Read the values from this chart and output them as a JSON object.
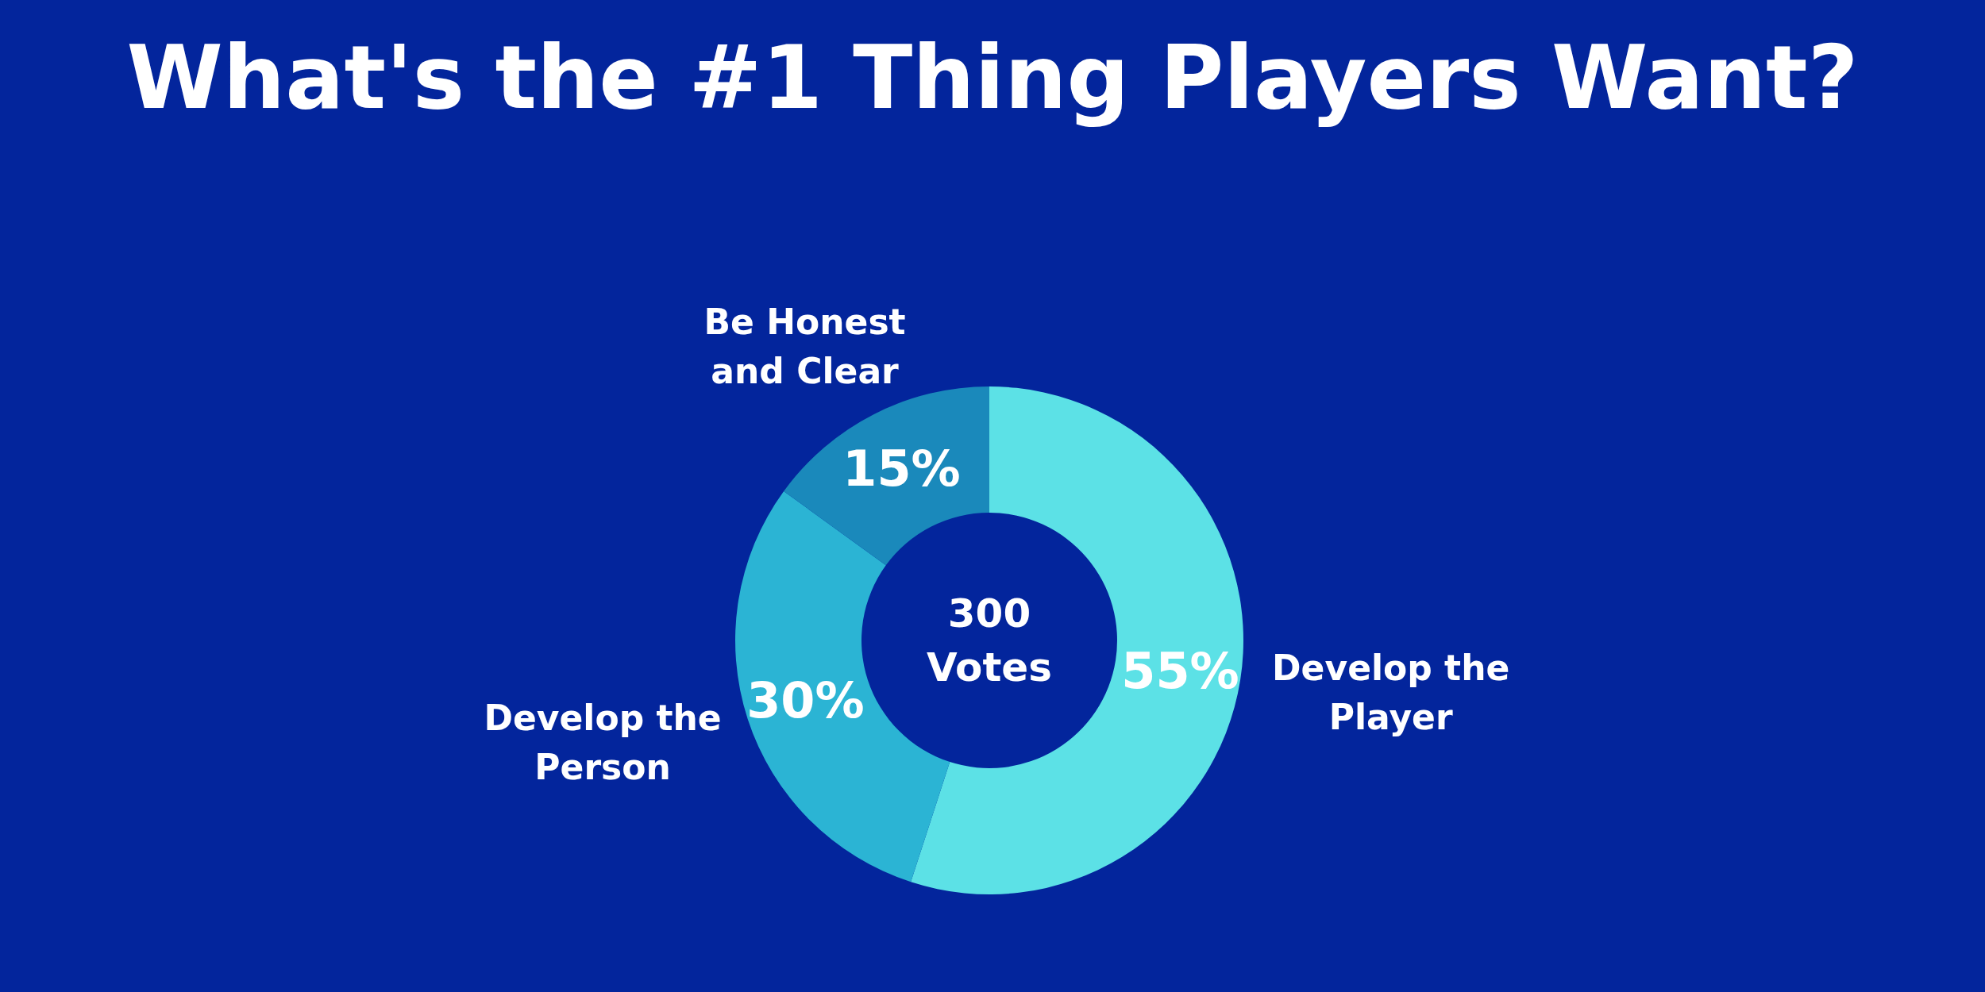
{
  "chart_data": {
    "type": "donut",
    "title": "What's the #1 Thing Players Want?",
    "categories": [
      "Develop the Player",
      "Develop the Person",
      "Be Honest and Clear"
    ],
    "values": [
      55,
      30,
      15
    ],
    "colors": [
      "#5ce1e6",
      "#2bb4d4",
      "#1a89bb"
    ],
    "value_labels": [
      "55%",
      "30%",
      "15%"
    ],
    "annotations": [
      "300 Votes"
    ]
  }
}
